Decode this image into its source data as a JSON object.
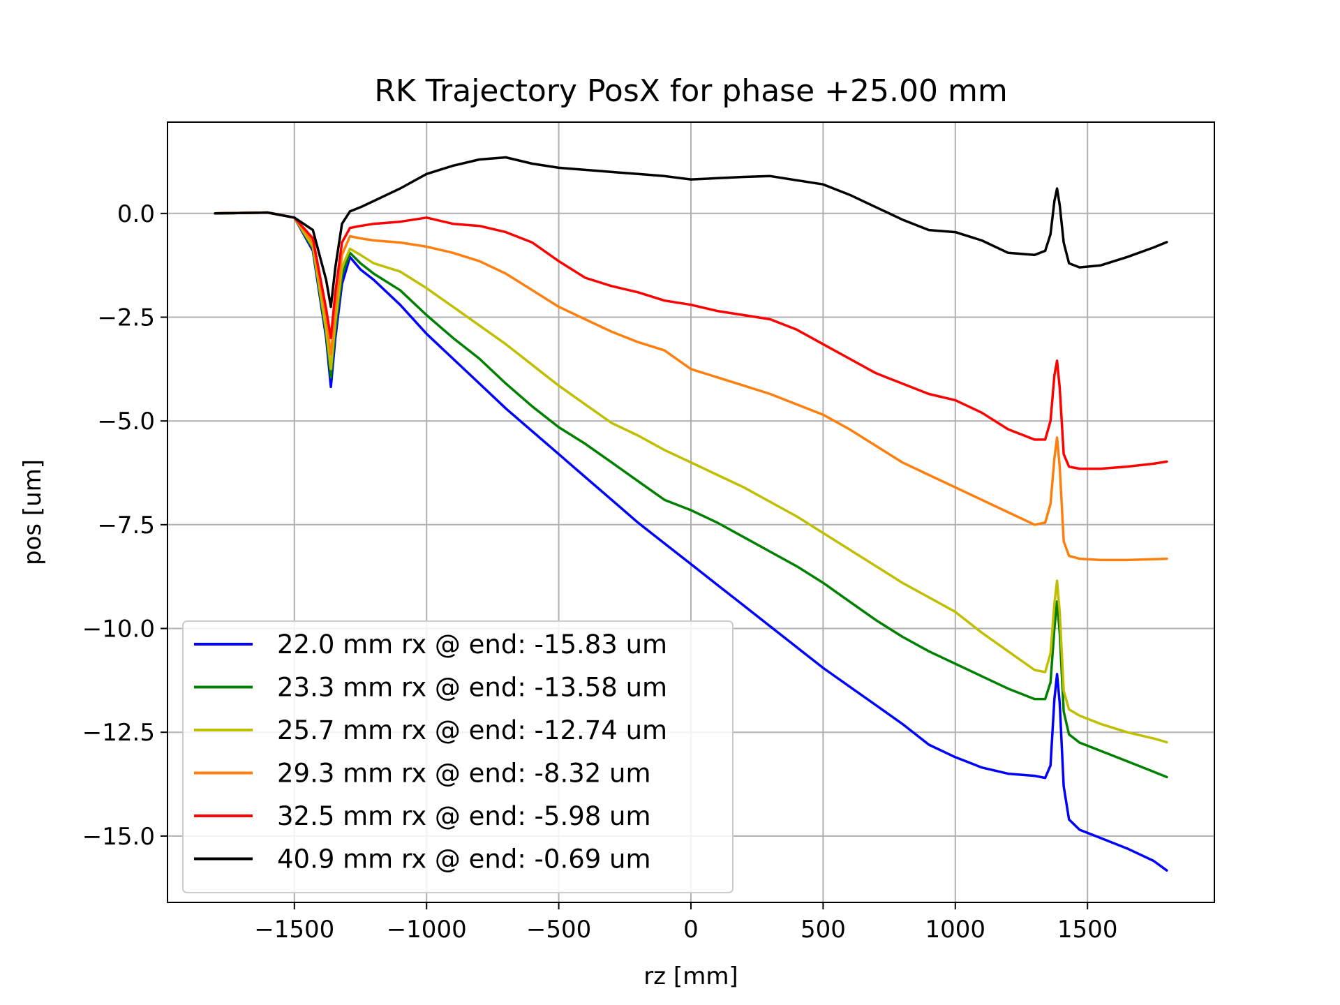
{
  "chart_data": {
    "type": "line",
    "title": "RK Trajectory PosX for phase +25.00 mm",
    "xlabel": "rz [mm]",
    "ylabel": "pos [um]",
    "xlim": [
      -1980,
      1980
    ],
    "ylim": [
      -16.6,
      2.2
    ],
    "xticks": [
      -1500,
      -1000,
      -500,
      0,
      500,
      1000,
      1500
    ],
    "xtick_labels": [
      "−1500",
      "−1000",
      "−500",
      "0",
      "500",
      "1000",
      "1500"
    ],
    "yticks": [
      0.0,
      -2.5,
      -5.0,
      -7.5,
      -10.0,
      -12.5,
      -15.0
    ],
    "ytick_labels": [
      "0.0",
      "−2.5",
      "−5.0",
      "−7.5",
      "−10.0",
      "−12.5",
      "−15.0"
    ],
    "grid": true,
    "legend_position": "lower-left",
    "series": [
      {
        "name": "22.0 mm rx @ end: -15.83 um",
        "color": "#0000ff",
        "points": [
          [
            -1800,
            0
          ],
          [
            -1600,
            0.02
          ],
          [
            -1500,
            -0.1
          ],
          [
            -1430,
            -0.9
          ],
          [
            -1380,
            -3.0
          ],
          [
            -1362,
            -4.18
          ],
          [
            -1345,
            -3.0
          ],
          [
            -1320,
            -1.7
          ],
          [
            -1290,
            -1.05
          ],
          [
            -1250,
            -1.35
          ],
          [
            -1200,
            -1.6
          ],
          [
            -1100,
            -2.2
          ],
          [
            -1000,
            -2.9
          ],
          [
            -900,
            -3.5
          ],
          [
            -800,
            -4.1
          ],
          [
            -700,
            -4.7
          ],
          [
            -600,
            -5.25
          ],
          [
            -500,
            -5.8
          ],
          [
            -400,
            -6.35
          ],
          [
            -300,
            -6.9
          ],
          [
            -200,
            -7.45
          ],
          [
            -100,
            -7.95
          ],
          [
            0,
            -8.45
          ],
          [
            100,
            -8.95
          ],
          [
            200,
            -9.45
          ],
          [
            300,
            -9.95
          ],
          [
            400,
            -10.45
          ],
          [
            500,
            -10.95
          ],
          [
            600,
            -11.4
          ],
          [
            700,
            -11.85
          ],
          [
            800,
            -12.3
          ],
          [
            900,
            -12.8
          ],
          [
            1000,
            -13.1
          ],
          [
            1100,
            -13.35
          ],
          [
            1200,
            -13.5
          ],
          [
            1300,
            -13.55
          ],
          [
            1340,
            -13.6
          ],
          [
            1360,
            -13.3
          ],
          [
            1375,
            -11.7
          ],
          [
            1385,
            -11.1
          ],
          [
            1395,
            -11.8
          ],
          [
            1410,
            -13.8
          ],
          [
            1430,
            -14.6
          ],
          [
            1470,
            -14.85
          ],
          [
            1550,
            -15.05
          ],
          [
            1650,
            -15.3
          ],
          [
            1750,
            -15.6
          ],
          [
            1800,
            -15.83
          ]
        ]
      },
      {
        "name": "23.3 mm rx @ end: -13.58 um",
        "color": "#008000",
        "points": [
          [
            -1800,
            0
          ],
          [
            -1600,
            0.02
          ],
          [
            -1500,
            -0.1
          ],
          [
            -1430,
            -0.85
          ],
          [
            -1380,
            -2.9
          ],
          [
            -1362,
            -3.95
          ],
          [
            -1345,
            -2.8
          ],
          [
            -1320,
            -1.5
          ],
          [
            -1290,
            -0.95
          ],
          [
            -1250,
            -1.2
          ],
          [
            -1200,
            -1.45
          ],
          [
            -1100,
            -1.85
          ],
          [
            -1000,
            -2.45
          ],
          [
            -900,
            -3.0
          ],
          [
            -800,
            -3.5
          ],
          [
            -700,
            -4.1
          ],
          [
            -600,
            -4.65
          ],
          [
            -500,
            -5.15
          ],
          [
            -400,
            -5.55
          ],
          [
            -300,
            -6.0
          ],
          [
            -200,
            -6.45
          ],
          [
            -100,
            -6.9
          ],
          [
            0,
            -7.15
          ],
          [
            100,
            -7.45
          ],
          [
            200,
            -7.8
          ],
          [
            300,
            -8.15
          ],
          [
            400,
            -8.5
          ],
          [
            500,
            -8.9
          ],
          [
            600,
            -9.35
          ],
          [
            700,
            -9.8
          ],
          [
            800,
            -10.2
          ],
          [
            900,
            -10.55
          ],
          [
            1000,
            -10.85
          ],
          [
            1100,
            -11.15
          ],
          [
            1200,
            -11.45
          ],
          [
            1300,
            -11.7
          ],
          [
            1340,
            -11.7
          ],
          [
            1360,
            -11.3
          ],
          [
            1375,
            -10.0
          ],
          [
            1385,
            -9.35
          ],
          [
            1395,
            -10.1
          ],
          [
            1410,
            -12.0
          ],
          [
            1430,
            -12.55
          ],
          [
            1470,
            -12.75
          ],
          [
            1550,
            -12.95
          ],
          [
            1650,
            -13.2
          ],
          [
            1750,
            -13.45
          ],
          [
            1800,
            -13.58
          ]
        ]
      },
      {
        "name": "25.7 mm rx @ end: -12.74 um",
        "color": "#bfbf00",
        "points": [
          [
            -1800,
            0
          ],
          [
            -1600,
            0.02
          ],
          [
            -1500,
            -0.1
          ],
          [
            -1430,
            -0.8
          ],
          [
            -1380,
            -2.8
          ],
          [
            -1362,
            -3.75
          ],
          [
            -1345,
            -2.6
          ],
          [
            -1320,
            -1.3
          ],
          [
            -1290,
            -0.85
          ],
          [
            -1250,
            -1.0
          ],
          [
            -1200,
            -1.2
          ],
          [
            -1100,
            -1.4
          ],
          [
            -1000,
            -1.8
          ],
          [
            -900,
            -2.25
          ],
          [
            -800,
            -2.7
          ],
          [
            -700,
            -3.15
          ],
          [
            -600,
            -3.65
          ],
          [
            -500,
            -4.15
          ],
          [
            -400,
            -4.6
          ],
          [
            -300,
            -5.05
          ],
          [
            -200,
            -5.35
          ],
          [
            -100,
            -5.7
          ],
          [
            0,
            -6.0
          ],
          [
            100,
            -6.3
          ],
          [
            200,
            -6.6
          ],
          [
            300,
            -6.95
          ],
          [
            400,
            -7.3
          ],
          [
            500,
            -7.7
          ],
          [
            600,
            -8.1
          ],
          [
            700,
            -8.5
          ],
          [
            800,
            -8.9
          ],
          [
            900,
            -9.25
          ],
          [
            1000,
            -9.6
          ],
          [
            1100,
            -10.1
          ],
          [
            1200,
            -10.55
          ],
          [
            1300,
            -11.0
          ],
          [
            1340,
            -11.05
          ],
          [
            1360,
            -10.6
          ],
          [
            1375,
            -9.4
          ],
          [
            1385,
            -8.85
          ],
          [
            1395,
            -9.6
          ],
          [
            1410,
            -11.5
          ],
          [
            1430,
            -11.95
          ],
          [
            1470,
            -12.1
          ],
          [
            1550,
            -12.3
          ],
          [
            1650,
            -12.5
          ],
          [
            1750,
            -12.65
          ],
          [
            1800,
            -12.74
          ]
        ]
      },
      {
        "name": "29.3 mm rx @ end: -8.32 um",
        "color": "#ff7f0e",
        "points": [
          [
            -1800,
            0
          ],
          [
            -1600,
            0.02
          ],
          [
            -1500,
            -0.1
          ],
          [
            -1430,
            -0.7
          ],
          [
            -1380,
            -2.5
          ],
          [
            -1362,
            -3.4
          ],
          [
            -1345,
            -2.3
          ],
          [
            -1320,
            -1.0
          ],
          [
            -1290,
            -0.55
          ],
          [
            -1250,
            -0.6
          ],
          [
            -1200,
            -0.65
          ],
          [
            -1100,
            -0.7
          ],
          [
            -1000,
            -0.8
          ],
          [
            -900,
            -0.95
          ],
          [
            -800,
            -1.15
          ],
          [
            -700,
            -1.45
          ],
          [
            -600,
            -1.85
          ],
          [
            -500,
            -2.25
          ],
          [
            -400,
            -2.55
          ],
          [
            -300,
            -2.85
          ],
          [
            -200,
            -3.1
          ],
          [
            -100,
            -3.3
          ],
          [
            0,
            -3.75
          ],
          [
            100,
            -3.95
          ],
          [
            200,
            -4.15
          ],
          [
            300,
            -4.35
          ],
          [
            400,
            -4.6
          ],
          [
            500,
            -4.85
          ],
          [
            600,
            -5.2
          ],
          [
            700,
            -5.6
          ],
          [
            800,
            -6.0
          ],
          [
            900,
            -6.3
          ],
          [
            1000,
            -6.6
          ],
          [
            1100,
            -6.9
          ],
          [
            1200,
            -7.2
          ],
          [
            1300,
            -7.5
          ],
          [
            1340,
            -7.45
          ],
          [
            1360,
            -7.0
          ],
          [
            1375,
            -5.9
          ],
          [
            1385,
            -5.4
          ],
          [
            1395,
            -6.1
          ],
          [
            1410,
            -7.9
          ],
          [
            1430,
            -8.25
          ],
          [
            1470,
            -8.32
          ],
          [
            1550,
            -8.35
          ],
          [
            1650,
            -8.35
          ],
          [
            1750,
            -8.33
          ],
          [
            1800,
            -8.32
          ]
        ]
      },
      {
        "name": "32.5 mm rx @ end: -5.98 um",
        "color": "#ff0000",
        "points": [
          [
            -1800,
            0
          ],
          [
            -1600,
            0.02
          ],
          [
            -1500,
            -0.1
          ],
          [
            -1430,
            -0.6
          ],
          [
            -1380,
            -2.3
          ],
          [
            -1362,
            -3.0
          ],
          [
            -1345,
            -1.9
          ],
          [
            -1320,
            -0.7
          ],
          [
            -1290,
            -0.35
          ],
          [
            -1250,
            -0.3
          ],
          [
            -1200,
            -0.25
          ],
          [
            -1100,
            -0.2
          ],
          [
            -1000,
            -0.1
          ],
          [
            -900,
            -0.25
          ],
          [
            -800,
            -0.3
          ],
          [
            -700,
            -0.45
          ],
          [
            -600,
            -0.7
          ],
          [
            -500,
            -1.15
          ],
          [
            -400,
            -1.55
          ],
          [
            -300,
            -1.75
          ],
          [
            -200,
            -1.9
          ],
          [
            -100,
            -2.1
          ],
          [
            0,
            -2.2
          ],
          [
            100,
            -2.35
          ],
          [
            200,
            -2.45
          ],
          [
            300,
            -2.55
          ],
          [
            400,
            -2.8
          ],
          [
            500,
            -3.15
          ],
          [
            600,
            -3.5
          ],
          [
            700,
            -3.85
          ],
          [
            800,
            -4.1
          ],
          [
            900,
            -4.35
          ],
          [
            1000,
            -4.5
          ],
          [
            1100,
            -4.8
          ],
          [
            1200,
            -5.2
          ],
          [
            1300,
            -5.45
          ],
          [
            1340,
            -5.45
          ],
          [
            1360,
            -5.0
          ],
          [
            1375,
            -3.9
          ],
          [
            1385,
            -3.55
          ],
          [
            1395,
            -4.2
          ],
          [
            1410,
            -5.8
          ],
          [
            1430,
            -6.1
          ],
          [
            1470,
            -6.15
          ],
          [
            1550,
            -6.15
          ],
          [
            1650,
            -6.1
          ],
          [
            1750,
            -6.03
          ],
          [
            1800,
            -5.98
          ]
        ]
      },
      {
        "name": "40.9 mm rx @ end: -0.69 um",
        "color": "#000000",
        "points": [
          [
            -1800,
            0
          ],
          [
            -1600,
            0.02
          ],
          [
            -1500,
            -0.1
          ],
          [
            -1430,
            -0.4
          ],
          [
            -1380,
            -1.6
          ],
          [
            -1362,
            -2.25
          ],
          [
            -1345,
            -1.3
          ],
          [
            -1320,
            -0.25
          ],
          [
            -1290,
            0.05
          ],
          [
            -1250,
            0.15
          ],
          [
            -1200,
            0.3
          ],
          [
            -1100,
            0.6
          ],
          [
            -1000,
            0.95
          ],
          [
            -900,
            1.15
          ],
          [
            -800,
            1.3
          ],
          [
            -700,
            1.35
          ],
          [
            -600,
            1.2
          ],
          [
            -500,
            1.1
          ],
          [
            -400,
            1.05
          ],
          [
            -300,
            1.0
          ],
          [
            -200,
            0.95
          ],
          [
            -100,
            0.9
          ],
          [
            0,
            0.82
          ],
          [
            100,
            0.85
          ],
          [
            200,
            0.88
          ],
          [
            300,
            0.9
          ],
          [
            400,
            0.8
          ],
          [
            500,
            0.7
          ],
          [
            600,
            0.45
          ],
          [
            700,
            0.15
          ],
          [
            800,
            -0.15
          ],
          [
            900,
            -0.4
          ],
          [
            1000,
            -0.45
          ],
          [
            1100,
            -0.65
          ],
          [
            1200,
            -0.95
          ],
          [
            1300,
            -1.0
          ],
          [
            1340,
            -0.9
          ],
          [
            1360,
            -0.5
          ],
          [
            1375,
            0.3
          ],
          [
            1385,
            0.6
          ],
          [
            1395,
            0.2
          ],
          [
            1410,
            -0.7
          ],
          [
            1430,
            -1.2
          ],
          [
            1470,
            -1.3
          ],
          [
            1550,
            -1.25
          ],
          [
            1650,
            -1.05
          ],
          [
            1750,
            -0.82
          ],
          [
            1800,
            -0.69
          ]
        ]
      }
    ]
  }
}
